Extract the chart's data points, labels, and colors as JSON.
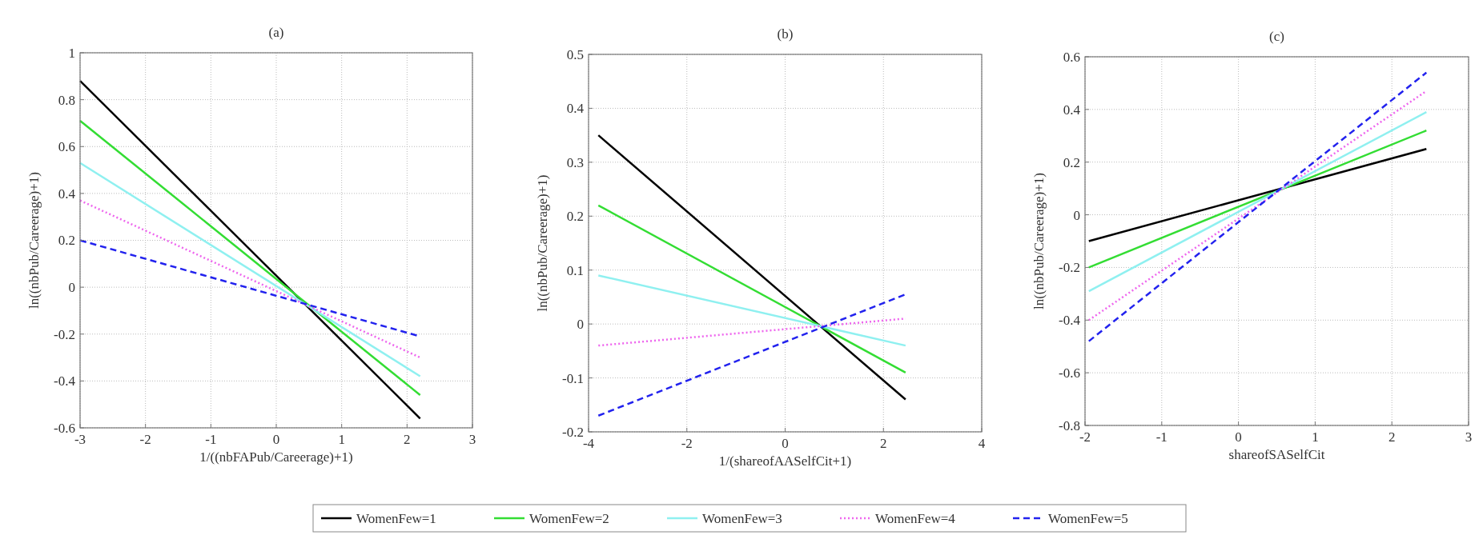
{
  "chart_data": [
    {
      "type": "line",
      "title": "(a)",
      "xlabel": "1/((nbFAPub/Careerage)+1)",
      "ylabel": "ln((nbPub/Careerage)+1)",
      "xlim": [
        -3,
        3
      ],
      "ylim": [
        -0.6,
        1
      ],
      "xticks": [
        -3,
        -2,
        -1,
        0,
        1,
        2,
        3
      ],
      "yticks": [
        -0.6,
        -0.4,
        -0.2,
        0,
        0.2,
        0.4,
        0.6,
        0.8,
        1
      ],
      "grid": true,
      "legend": "bottom",
      "x": [
        -3,
        2.2
      ],
      "series": [
        {
          "name": "WomenFew=1",
          "color": "#000000",
          "line_style": "solid",
          "values": [
            0.88,
            -0.56
          ]
        },
        {
          "name": "WomenFew=2",
          "color": "#33dd33",
          "line_style": "solid",
          "values": [
            0.71,
            -0.46
          ]
        },
        {
          "name": "WomenFew=3",
          "color": "#8ff0f0",
          "line_style": "solid",
          "values": [
            0.53,
            -0.38
          ]
        },
        {
          "name": "WomenFew=4",
          "color": "#ee66ee",
          "line_style": "dotted",
          "values": [
            0.37,
            -0.3
          ]
        },
        {
          "name": "WomenFew=5",
          "color": "#2222ee",
          "line_style": "dashed",
          "values": [
            0.2,
            -0.21
          ]
        }
      ]
    },
    {
      "type": "line",
      "title": "(b)",
      "xlabel": "1/(shareofAASelfCit+1)",
      "ylabel": "ln((nbPub/Careerage)+1)",
      "xlim": [
        -4,
        4
      ],
      "ylim": [
        -0.2,
        0.5
      ],
      "xticks": [
        -4,
        -2,
        0,
        2,
        4
      ],
      "yticks": [
        -0.2,
        -0.1,
        0,
        0.1,
        0.2,
        0.3,
        0.4,
        0.5
      ],
      "grid": true,
      "x": [
        -3.8,
        2.45
      ],
      "series": [
        {
          "color": "#000000",
          "line_style": "solid",
          "values": [
            0.35,
            -0.14
          ]
        },
        {
          "color": "#33dd33",
          "line_style": "solid",
          "values": [
            0.22,
            -0.09
          ]
        },
        {
          "color": "#8ff0f0",
          "line_style": "solid",
          "values": [
            0.09,
            -0.04
          ]
        },
        {
          "color": "#ee66ee",
          "line_style": "dotted",
          "values": [
            -0.04,
            0.01
          ]
        },
        {
          "color": "#2222ee",
          "line_style": "dashed",
          "values": [
            -0.17,
            0.055
          ]
        }
      ]
    },
    {
      "type": "line",
      "title": "(c)",
      "xlabel": "shareofSASelfCit",
      "ylabel": "ln((nbPub/Careerage)+1)",
      "xlim": [
        -2,
        3
      ],
      "ylim": [
        -0.8,
        0.6
      ],
      "xticks": [
        -2,
        -1,
        0,
        1,
        2,
        3
      ],
      "yticks": [
        -0.8,
        -0.6,
        -0.4,
        -0.2,
        0,
        0.2,
        0.4,
        0.6
      ],
      "grid": true,
      "x": [
        -1.95,
        2.45
      ],
      "series": [
        {
          "color": "#000000",
          "line_style": "solid",
          "values": [
            -0.1,
            0.25
          ]
        },
        {
          "color": "#33dd33",
          "line_style": "solid",
          "values": [
            -0.2,
            0.32
          ]
        },
        {
          "color": "#8ff0f0",
          "line_style": "solid",
          "values": [
            -0.29,
            0.39
          ]
        },
        {
          "color": "#ee66ee",
          "line_style": "dotted",
          "values": [
            -0.4,
            0.47
          ]
        },
        {
          "color": "#2222ee",
          "line_style": "dashed",
          "values": [
            -0.48,
            0.54
          ]
        }
      ]
    }
  ]
}
